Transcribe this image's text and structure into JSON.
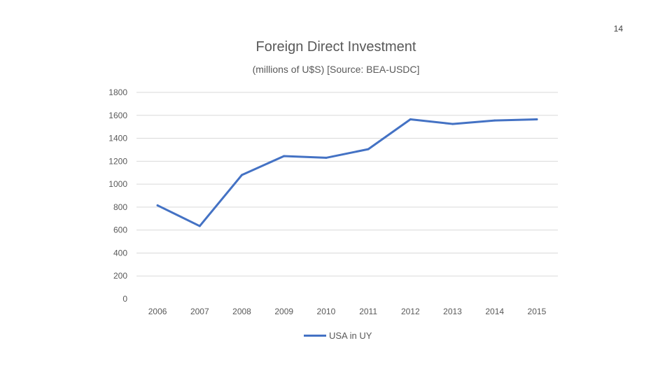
{
  "page": {
    "number": "14"
  },
  "chart_data": {
    "type": "line",
    "title": "Foreign Direct Investment",
    "subtitle": "(millions of U$S) [Source: BEA-USDC]",
    "xlabel": "",
    "ylabel": "",
    "categories": [
      "2006",
      "2007",
      "2008",
      "2009",
      "2010",
      "2011",
      "2012",
      "2013",
      "2014",
      "2015"
    ],
    "series": [
      {
        "name": "USA in UY",
        "color": "#4472c4",
        "values": [
          815,
          635,
          1080,
          1245,
          1230,
          1305,
          1565,
          1525,
          1555,
          1565
        ]
      }
    ],
    "ylim": [
      0,
      1800
    ],
    "yticks": [
      0,
      200,
      400,
      600,
      800,
      1000,
      1200,
      1400,
      1600,
      1800
    ],
    "grid": true,
    "legend_position": "bottom"
  }
}
